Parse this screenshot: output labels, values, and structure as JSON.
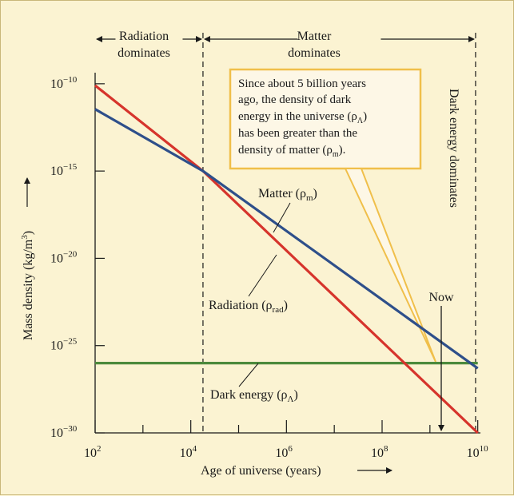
{
  "colors": {
    "background": "#fbf3d2",
    "radiation": "#d6342c",
    "matter": "#2e4f8a",
    "dark_energy": "#4c8a3c",
    "callout_fill": "#fdf7e6",
    "callout_border": "#f0bf4a"
  },
  "chart_data": {
    "type": "line",
    "xlabel": "Age of universe (years)",
    "ylabel": "Mass density (kg/m³)",
    "x_scale": "log",
    "y_scale": "log",
    "xlim": [
      100,
      100000000000.0
    ],
    "ylim": [
      1e-30,
      1e-09
    ],
    "x_ticks": [
      {
        "value": 100,
        "base": "10",
        "exp": "2"
      },
      {
        "value": 10000,
        "base": "10",
        "exp": "4"
      },
      {
        "value": 1000000,
        "base": "10",
        "exp": "6"
      },
      {
        "value": 100000000,
        "base": "10",
        "exp": "8"
      },
      {
        "value": 10000000000,
        "base": "10",
        "exp": "10"
      }
    ],
    "y_ticks": [
      {
        "value": 1e-10,
        "base": "10",
        "exp": "−10"
      },
      {
        "value": 1e-15,
        "base": "10",
        "exp": "−15"
      },
      {
        "value": 1e-20,
        "base": "10",
        "exp": "−20"
      },
      {
        "value": 1e-25,
        "base": "10",
        "exp": "−25"
      },
      {
        "value": 1e-30,
        "base": "10",
        "exp": "−30"
      }
    ],
    "series": [
      {
        "name": "Radiation (ρrad)",
        "x": [
          100,
          18000,
          10000000000.0
        ],
        "y": [
          8e-11,
          1e-15,
          1e-30
        ]
      },
      {
        "name": "Matter (ρm)",
        "x": [
          100,
          18000,
          10000000000.0
        ],
        "y": [
          3.5e-12,
          1e-15,
          5e-27
        ]
      },
      {
        "name": "Dark energy (ρΛ)",
        "x": [
          100,
          10000000000.0
        ],
        "y": [
          1e-26,
          1e-26
        ]
      }
    ],
    "epochs": [
      {
        "label": "Radiation\ndominates",
        "x_start": 100,
        "x_end": 18000
      },
      {
        "label": "Matter\ndominates",
        "x_start": 18000,
        "x_end": 9000000000.0
      }
    ],
    "dividers_x": [
      18000,
      9000000000.0
    ],
    "now_x": 10000000000.0
  },
  "labels": {
    "radiation_epoch_line1": "Radiation",
    "radiation_epoch_line2": "dominates",
    "matter_epoch_line1": "Matter",
    "matter_epoch_line2": "dominates",
    "dark_energy_epoch": "Dark energy dominates",
    "now": "Now",
    "matter_main": "Matter (ρ",
    "matter_sub": "m",
    "matter_close": ")",
    "radiation_main": "Radiation (ρ",
    "radiation_sub": "rad",
    "radiation_close": ")",
    "dark_main": "Dark energy (ρ",
    "dark_sub": "Λ",
    "dark_close": ")",
    "ylabel_main": "Mass density (kg/m",
    "ylabel_sup": "3",
    "ylabel_close": ")",
    "xlabel": "Age of universe (years)"
  },
  "callout": {
    "line1": "Since about 5 billion years",
    "line2": "ago, the density of dark",
    "line3_main": "energy in the universe (ρ",
    "line3_sub": "Λ",
    "line3_close": ")",
    "line4": "has been greater than the",
    "line5_main": "density of matter (ρ",
    "line5_sub": "m",
    "line5_close": ")."
  }
}
